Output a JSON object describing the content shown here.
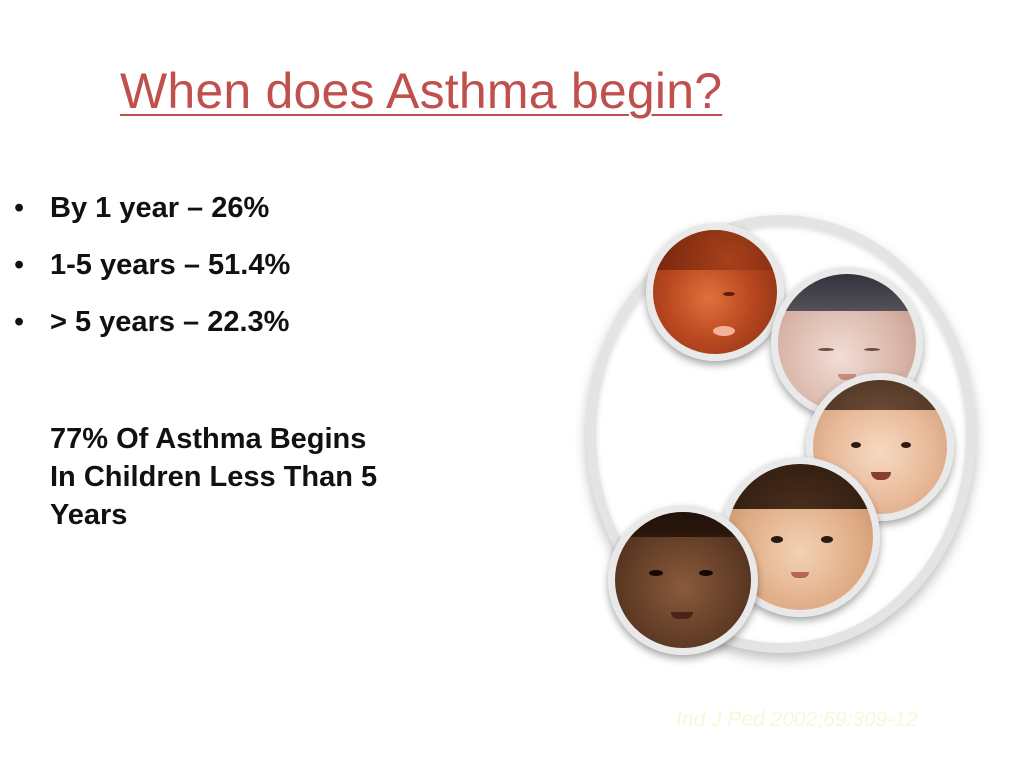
{
  "slide": {
    "title": "When does Asthma begin?",
    "bullets": [
      {
        "text": "By 1 year – 26%"
      },
      {
        "text": "1-5 years – 51.4%"
      },
      {
        "text": "> 5 years – 22.3%"
      }
    ],
    "bullet_symbol": "•",
    "summary_lines": [
      "77% Of Asthma Begins",
      "In Children Less Than 5",
      "Years"
    ],
    "citation": "Ind J Ped 2002;69:309-12"
  },
  "colors": {
    "title": "#c0504d",
    "body_text": "#111111",
    "citation": "#fbf6d9"
  }
}
